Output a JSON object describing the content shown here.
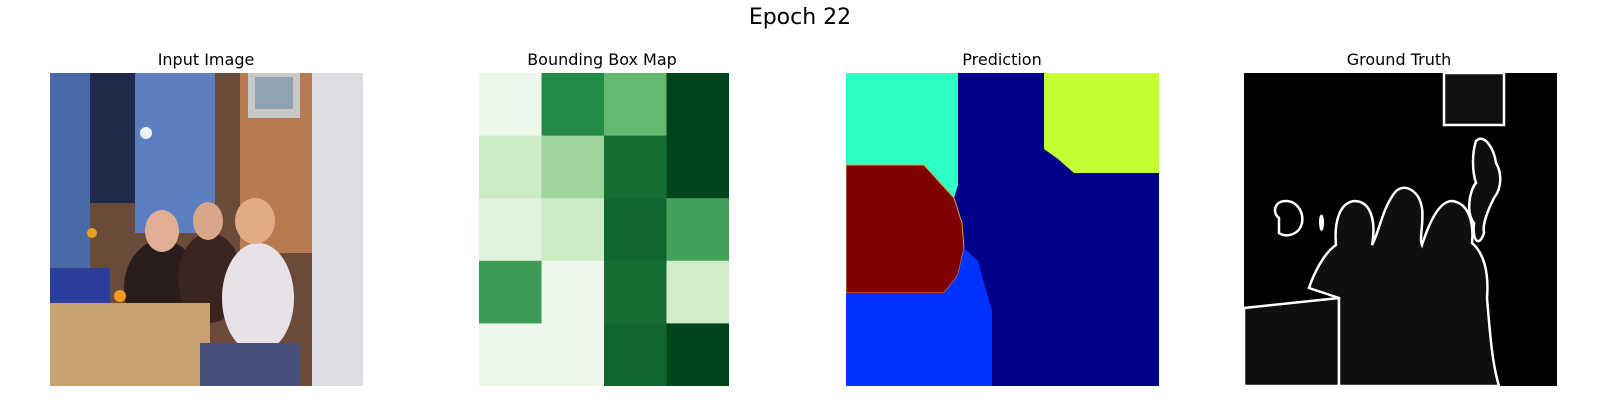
{
  "figure": {
    "title": "Epoch 22"
  },
  "panels": [
    {
      "title": "Input Image",
      "kind": "photo",
      "description_icon": "photo-icon"
    },
    {
      "title": "Bounding Box Map",
      "kind": "heatmap",
      "colormap": "Greens"
    },
    {
      "title": "Prediction",
      "kind": "segmentation",
      "colormap": "jet"
    },
    {
      "title": "Ground Truth",
      "kind": "edge-mask",
      "colormap": "gray"
    }
  ],
  "chart_data": {
    "type": "heatmap",
    "title": "Bounding Box Map",
    "rows": 5,
    "cols": 4,
    "colormap": "Greens",
    "values": [
      [
        0.05,
        0.75,
        0.55,
        1.0
      ],
      [
        0.22,
        0.38,
        0.85,
        1.0
      ],
      [
        0.12,
        0.22,
        0.88,
        0.65
      ],
      [
        0.68,
        0.05,
        0.85,
        0.2
      ],
      [
        0.05,
        0.05,
        0.88,
        1.0
      ]
    ]
  },
  "colors": {
    "greens_low": "#f7fcf5",
    "greens_high": "#00441b",
    "jet_cyan": "#2fffc4",
    "jet_navy": "#00008b",
    "jet_yellow": "#c4ff33",
    "jet_red": "#800000",
    "jet_blue": "#0033ff"
  }
}
